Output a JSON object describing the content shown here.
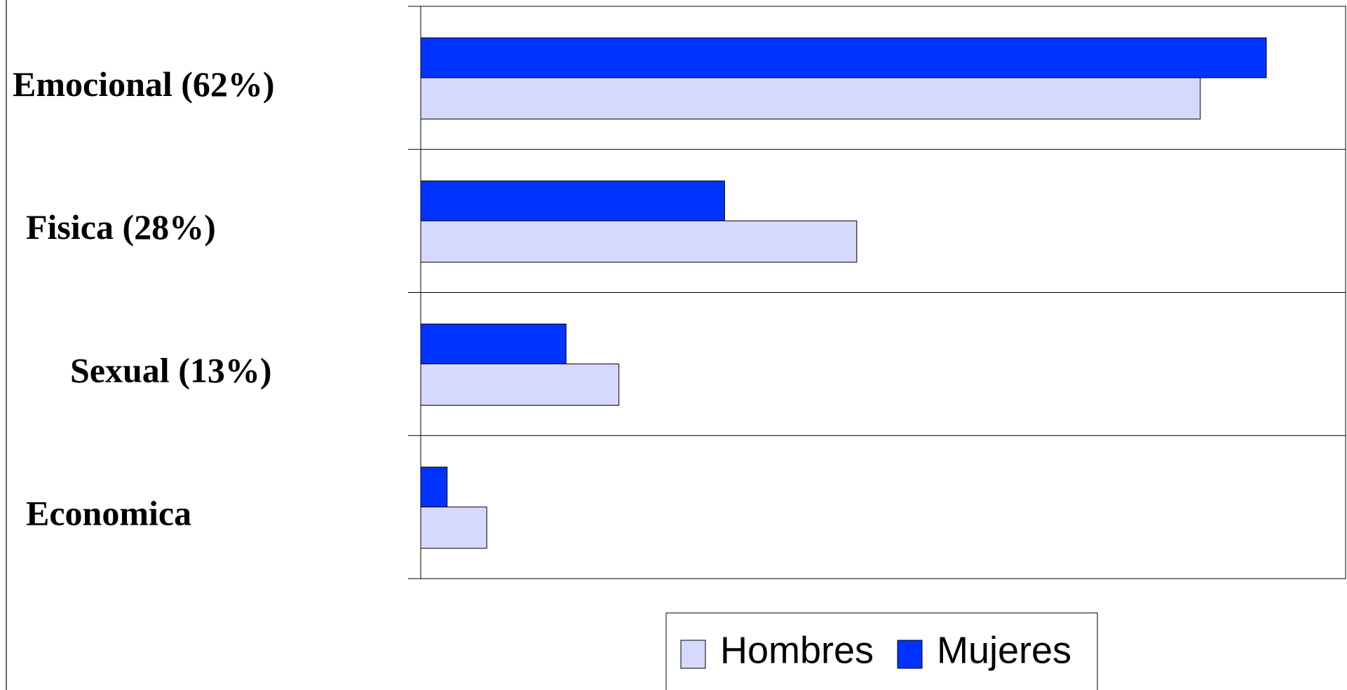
{
  "chart_data": {
    "type": "bar",
    "orientation": "horizontal",
    "categories": [
      "Emocional (62%)",
      "Fisica  (28%)",
      "Sexual (13%)",
      "Economica"
    ],
    "series": [
      {
        "name": "Mujeres",
        "color": "#0033ff",
        "values": [
          64,
          23,
          11,
          2
        ]
      },
      {
        "name": "Hombres",
        "color": "#d6d8fc",
        "values": [
          59,
          33,
          15,
          5
        ]
      }
    ],
    "xlim": [
      0,
      70
    ],
    "legend": "bottom"
  }
}
